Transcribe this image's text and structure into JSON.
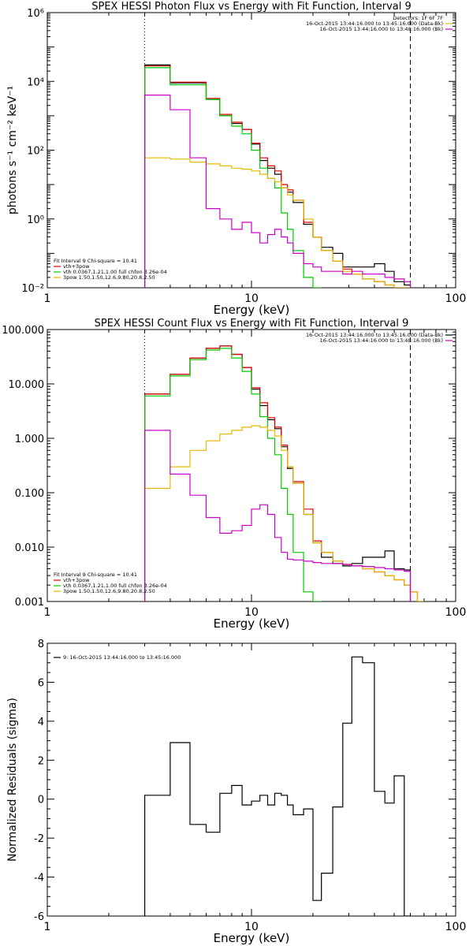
{
  "chart_data": [
    {
      "type": "line",
      "title": "SPEX HESSI Photon Flux vs Energy with Fit Function, Interval 9",
      "xlabel": "Energy (keV)",
      "ylabel": "photons s⁻¹ cm⁻² keV⁻¹",
      "xscale": "log",
      "yscale": "log",
      "xlim": [
        1,
        100
      ],
      "ylim": [
        0.01,
        1000000
      ],
      "x_ticks": [
        "1",
        "10",
        "100"
      ],
      "y_ticks": [
        "10⁻²",
        "10⁰",
        "10²",
        "10⁴",
        "10⁶"
      ],
      "ytick_values": [
        0.01,
        1,
        100,
        10000,
        1000000
      ],
      "dotted_line_x": 3,
      "dashed_line_x": 60,
      "legend_right": [
        {
          "text": "Detectors: 1F 6F 7F",
          "color": "#000000"
        },
        {
          "text": "16-Oct-2015 13:44:16.000 to 13:45:16.000 (Data-Bk)",
          "color": "#e6b800"
        },
        {
          "text": "16-Oct-2015 13:44:16.000 to 13:48:16.000 (Bk)",
          "color": "#cc00cc"
        }
      ],
      "legend_left": [
        {
          "text": "Fit Interval 9   Chi-square = 10.41",
          "color": "#000000"
        },
        {
          "text": "vth+3pow",
          "color": "#e00000"
        },
        {
          "text": "vth 0.0367,1.21,1.00  full chfon 3.26e-04",
          "color": "#00cc00"
        },
        {
          "text": "3pow 1.50,1.50,12.6,9.80,20.8,2.50",
          "color": "#e6b800"
        }
      ],
      "edges": [
        3,
        4,
        5,
        6,
        7,
        8,
        9,
        10,
        11,
        12,
        13,
        14,
        15,
        16,
        18,
        20,
        22,
        25,
        28,
        31,
        35,
        40,
        45,
        50,
        56,
        60
      ],
      "series": [
        {
          "name": "data",
          "color": "#000000",
          "values": [
            30000,
            9000,
            9000,
            3000,
            1000,
            600,
            400,
            150,
            50,
            30,
            20,
            8,
            6,
            3,
            0.7,
            0.3,
            0.15,
            0.1,
            0.04,
            0.04,
            0.04,
            0.05,
            0.03,
            0.015,
            0.012
          ]
        },
        {
          "name": "vth+3pow",
          "color": "#e00000",
          "values": [
            28000,
            9500,
            9500,
            3200,
            1100,
            650,
            400,
            160,
            60,
            35,
            25,
            10,
            7,
            3.5,
            0.8,
            0.3,
            0.12,
            0.06,
            0.035,
            0.025,
            0.018,
            0.015,
            0.012,
            0.01,
            0.008
          ]
        },
        {
          "name": "vth",
          "color": "#00cc00",
          "values": [
            25000,
            8000,
            8000,
            3000,
            1000,
            500,
            300,
            100,
            30,
            15,
            8,
            1.5,
            0.5,
            0.12,
            0.02,
            0.005
          ]
        },
        {
          "name": "3pow",
          "color": "#e6b800",
          "values": [
            60,
            55,
            45,
            40,
            35,
            30,
            28,
            25,
            20,
            15,
            12,
            8,
            5,
            3.5,
            1,
            0.3,
            0.12,
            0.06,
            0.03,
            0.025,
            0.018,
            0.015,
            0.012,
            0.01,
            0.008
          ]
        },
        {
          "name": "Bk",
          "color": "#cc00cc",
          "values": [
            4000,
            1500,
            60,
            2,
            1,
            0.5,
            0.8,
            0.4,
            0.2,
            0.35,
            0.5,
            0.3,
            0.2,
            0.1,
            0.05,
            0.04,
            0.03,
            0.03,
            0.025,
            0.03,
            0.025,
            0.025,
            0.02,
            0.018,
            0.015
          ]
        }
      ]
    },
    {
      "type": "line",
      "title": "SPEX HESSI Count Flux vs Energy with Fit Function, Interval 9",
      "xlabel": "Energy (keV)",
      "ylabel": "",
      "xscale": "log",
      "yscale": "log",
      "xlim": [
        1,
        100
      ],
      "ylim": [
        0.001,
        100
      ],
      "x_ticks": [
        "1",
        "10",
        "100"
      ],
      "y_ticks": [
        "0.001",
        "0.010",
        "0.100",
        "1.000",
        "10.000",
        "100.000"
      ],
      "ytick_values": [
        0.001,
        0.01,
        0.1,
        1,
        10,
        100
      ],
      "dotted_line_x": 3,
      "dashed_line_x": 60,
      "legend_right": [
        {
          "text": "16-Oct-2015 13:44:16.000 to 13:45:16.000 (Data-Bk)",
          "color": "#000000"
        },
        {
          "text": "16-Oct-2015 13:44:16.000 to 13:48:16.000 (Bk)",
          "color": "#cc00cc"
        }
      ],
      "legend_left": [
        {
          "text": "Fit Interval 9   Chi-square = 10.41",
          "color": "#000000"
        },
        {
          "text": "vth+3pow",
          "color": "#e00000"
        },
        {
          "text": "vth 0.0367,1.21,1.00  full chfon 3.26e-04",
          "color": "#00cc00"
        },
        {
          "text": "3pow 1.50,1.50,12.6,9.80,20.8,2.50",
          "color": "#e6b800"
        }
      ],
      "edges": [
        3,
        4,
        5,
        6,
        7,
        8,
        9,
        10,
        11,
        12,
        13,
        14,
        15,
        16,
        18,
        20,
        22,
        25,
        28,
        31,
        35,
        40,
        45,
        50,
        56,
        60,
        65,
        70
      ],
      "series": [
        {
          "name": "data",
          "color": "#000000",
          "values": [
            6.5,
            15,
            30,
            45,
            50,
            35,
            20,
            8,
            4,
            2.2,
            1.5,
            0.7,
            0.28,
            0.15,
            0.04,
            0.012,
            0.0065,
            0.005,
            0.0045,
            0.005,
            0.0065,
            0.0065,
            0.0085,
            0.004,
            0.0038
          ]
        },
        {
          "name": "vth+3pow",
          "color": "#e00000",
          "values": [
            6.5,
            15,
            30,
            45,
            50,
            35,
            20,
            8.5,
            4.5,
            2.4,
            1.6,
            0.75,
            0.3,
            0.16,
            0.05,
            0.013,
            0.008,
            0.0055,
            0.0048,
            0.0045,
            0.004,
            0.0035,
            0.003,
            0.0025,
            0.002,
            0.0015,
            0.001
          ]
        },
        {
          "name": "vth",
          "color": "#00cc00",
          "values": [
            6,
            14,
            28,
            42,
            45,
            30,
            17,
            6.5,
            2.5,
            1,
            0.5,
            0.12,
            0.04,
            0.008,
            0.0015,
            0.0008
          ]
        },
        {
          "name": "3pow",
          "color": "#e6b800",
          "values": [
            0.12,
            0.3,
            0.6,
            0.9,
            1.2,
            1.4,
            1.6,
            1.7,
            1.6,
            1.4,
            1.1,
            0.6,
            0.3,
            0.15,
            0.04,
            0.012,
            0.008,
            0.0055,
            0.0048,
            0.0045,
            0.004,
            0.0035,
            0.003,
            0.0025,
            0.002,
            0.0015,
            0.001
          ]
        },
        {
          "name": "Bk",
          "color": "#cc00cc",
          "values": [
            1.4,
            0.22,
            0.09,
            0.035,
            0.018,
            0.02,
            0.025,
            0.05,
            0.06,
            0.04,
            0.015,
            0.008,
            0.006,
            0.0058,
            0.0055,
            0.0052,
            0.005,
            0.005,
            0.0048,
            0.0045,
            0.0044,
            0.0042,
            0.004,
            0.0038,
            0.0036
          ]
        }
      ]
    },
    {
      "type": "line",
      "title": "",
      "xlabel": "Energy (keV)",
      "ylabel": "Normalized Residuals (sigma)",
      "xscale": "log",
      "yscale": "linear",
      "xlim": [
        1,
        100
      ],
      "ylim": [
        -6,
        8
      ],
      "x_ticks": [
        "1",
        "10",
        "100"
      ],
      "y_ticks": [
        "-6",
        "-4",
        "-2",
        "0",
        "2",
        "4",
        "6",
        "8"
      ],
      "ytick_values": [
        -6,
        -4,
        -2,
        0,
        2,
        4,
        6,
        8
      ],
      "legend_left": [
        {
          "text": "9: 16-Oct-2015 13:44:16.000 to 13:45:16.000",
          "color": "#000000"
        }
      ],
      "edges": [
        3,
        4,
        5,
        6,
        7,
        8,
        9,
        10,
        11,
        12,
        13,
        14,
        15,
        16,
        18,
        20,
        22,
        25,
        28,
        31,
        35,
        40,
        45,
        50,
        56,
        60
      ],
      "series": [
        {
          "name": "residuals",
          "color": "#000000",
          "values": [
            0.2,
            2.9,
            -1.3,
            -1.7,
            0.3,
            0.7,
            -0.3,
            -0.1,
            0.2,
            -0.3,
            0.3,
            0.2,
            -0.3,
            -0.8,
            -0.5,
            -5.2,
            -3.8,
            -0.4,
            3.9,
            7.3,
            7,
            0.4,
            -0.2,
            1.2,
            -6
          ]
        }
      ]
    }
  ]
}
